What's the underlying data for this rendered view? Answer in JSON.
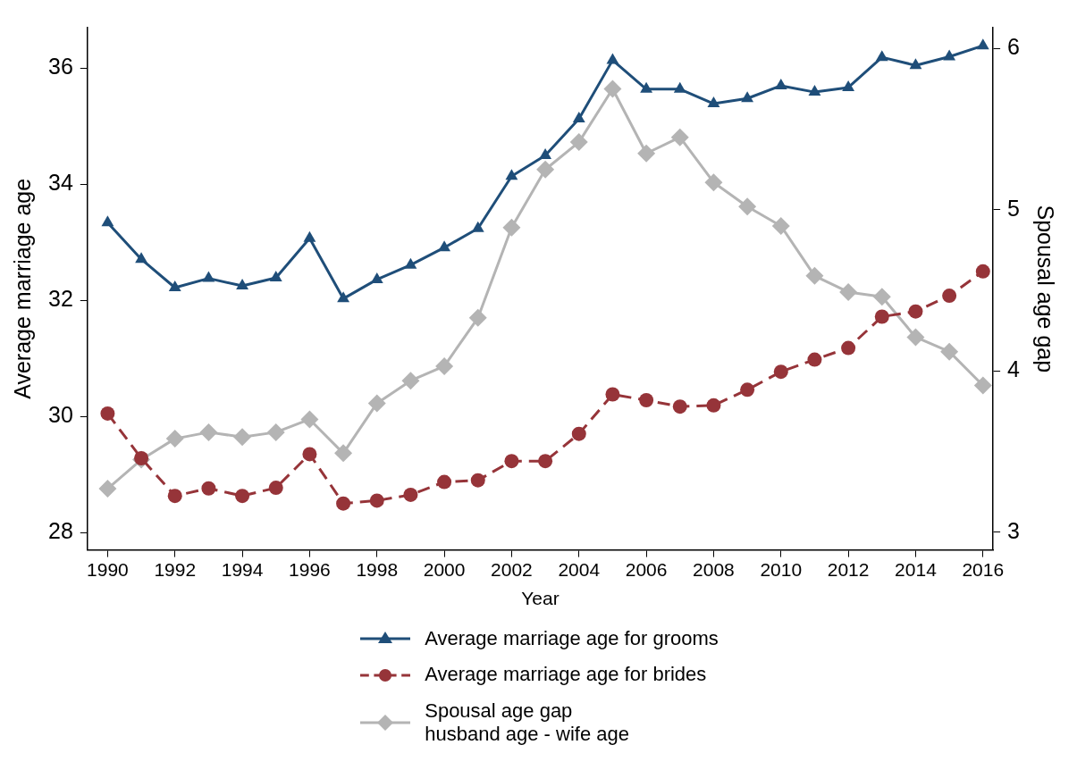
{
  "chart_data": {
    "type": "line",
    "xlabel": "Year",
    "ylabel": "Average marriage age",
    "y2label": "Spousal age gap",
    "x": [
      1990,
      1991,
      1992,
      1993,
      1994,
      1995,
      1996,
      1997,
      1998,
      1999,
      2000,
      2001,
      2002,
      2003,
      2004,
      2005,
      2006,
      2007,
      2008,
      2009,
      2010,
      2011,
      2012,
      2013,
      2014,
      2015,
      2016
    ],
    "xlim": [
      1989.4,
      2016.3
    ],
    "xticks": [
      1990,
      1992,
      1994,
      1996,
      1998,
      2000,
      2002,
      2004,
      2006,
      2008,
      2010,
      2012,
      2014,
      2016
    ],
    "ylim": [
      27.7,
      36.7
    ],
    "yticks": [
      28,
      30,
      32,
      34,
      36
    ],
    "y2lim": [
      2.89,
      6.13
    ],
    "y2ticks": [
      3,
      4,
      5,
      6
    ],
    "grid": false,
    "legend": "bottom",
    "series": [
      {
        "name": "Average marriage age for grooms",
        "color": "#1f4e79",
        "marker": "triangle",
        "line_style": "solid",
        "values": [
          33.34,
          32.71,
          32.22,
          32.38,
          32.25,
          32.39,
          33.07,
          32.03,
          32.36,
          32.61,
          32.91,
          33.24,
          34.14,
          34.5,
          35.13,
          36.14,
          35.64,
          35.64,
          35.39,
          35.48,
          35.7,
          35.59,
          35.67,
          36.19,
          36.05,
          36.2,
          36.39
        ]
      },
      {
        "name": "Average marriage age for brides",
        "color": "#963439",
        "marker": "circle",
        "line_style": "dashed",
        "values": [
          30.05,
          29.28,
          28.63,
          28.76,
          28.63,
          28.77,
          29.35,
          28.5,
          28.55,
          28.65,
          28.87,
          28.9,
          29.23,
          29.23,
          29.7,
          30.38,
          30.28,
          30.17,
          30.19,
          30.46,
          30.77,
          30.98,
          31.18,
          31.72,
          31.81,
          32.08,
          32.5
        ]
      },
      {
        "name": "Spousal age gap\nhusband age - wife age",
        "color": "#b4b4b4",
        "marker": "diamond",
        "line_style": "solid",
        "axis": "y2",
        "values": [
          3.27,
          3.45,
          3.58,
          3.62,
          3.59,
          3.62,
          3.7,
          3.49,
          3.8,
          3.94,
          4.03,
          4.33,
          4.89,
          5.25,
          5.42,
          5.75,
          5.35,
          5.45,
          5.17,
          5.02,
          4.9,
          4.59,
          4.49,
          4.46,
          4.21,
          4.12,
          3.91
        ]
      }
    ]
  }
}
